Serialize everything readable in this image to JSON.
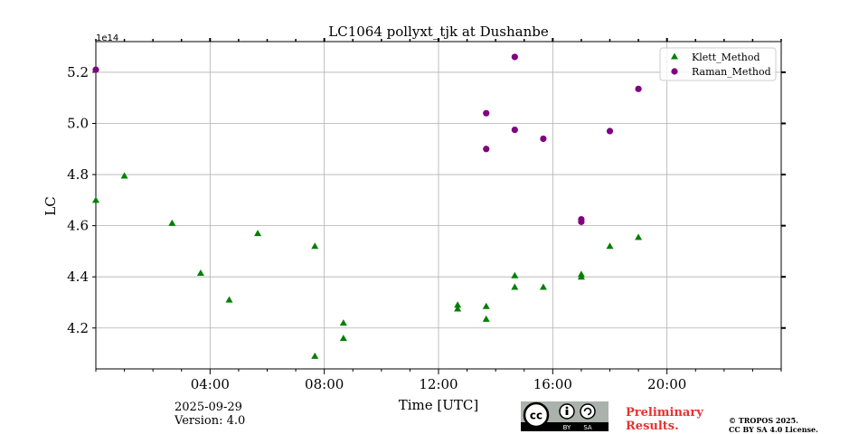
{
  "chart_data": {
    "type": "scatter",
    "title": "LC1064 pollyxt_tjk at Dushanbe",
    "xlabel": "Time [UTC]",
    "ylabel": "LC",
    "y_offset_label": "1e14",
    "xlim": [
      0,
      24
    ],
    "ylim": [
      4.04,
      5.32
    ],
    "x_tick_labels": [
      "04:00",
      "08:00",
      "12:00",
      "16:00",
      "20:00"
    ],
    "x_tick_hours": [
      4,
      8,
      12,
      16,
      20
    ],
    "y_tick_labels": [
      "4.2",
      "4.4",
      "4.6",
      "4.8",
      "5.0",
      "5.2"
    ],
    "y_tick_values": [
      4.2,
      4.4,
      4.6,
      4.8,
      5.0,
      5.2
    ],
    "grid": true,
    "legend_position": "top-right",
    "series": [
      {
        "name": "Klett_Method",
        "marker": "triangle",
        "color": "#008000",
        "x": [
          0.0,
          1.0,
          2.67,
          3.67,
          4.67,
          5.67,
          7.67,
          7.67,
          8.67,
          8.67,
          12.67,
          12.67,
          13.67,
          13.67,
          14.67,
          14.67,
          15.67,
          17.0,
          17.0,
          18.0,
          19.0
        ],
        "y": [
          4.7,
          4.795,
          4.61,
          4.415,
          4.31,
          4.57,
          4.52,
          4.09,
          4.22,
          4.16,
          4.29,
          4.275,
          4.285,
          4.235,
          4.405,
          4.36,
          4.36,
          4.41,
          4.4,
          4.52,
          4.555
        ]
      },
      {
        "name": "Raman_Method",
        "marker": "circle",
        "color": "#800080",
        "x": [
          0.0,
          13.67,
          13.67,
          14.67,
          14.67,
          15.67,
          17.0,
          17.0,
          18.0,
          19.0
        ],
        "y": [
          5.21,
          5.04,
          4.9,
          5.26,
          4.975,
          4.94,
          4.625,
          4.615,
          4.97,
          5.135
        ]
      }
    ]
  },
  "footer": {
    "date": "2025-09-29",
    "version": "Version: 4.0",
    "preliminary_line1": "Preliminary",
    "preliminary_line2": "Results.",
    "copyright_line1": "© TROPOS 2025.",
    "copyright_line2": "CC BY SA 4.0 License.",
    "cc_badge": {
      "cc": "cc",
      "by": "BY",
      "sa": "SA"
    }
  }
}
